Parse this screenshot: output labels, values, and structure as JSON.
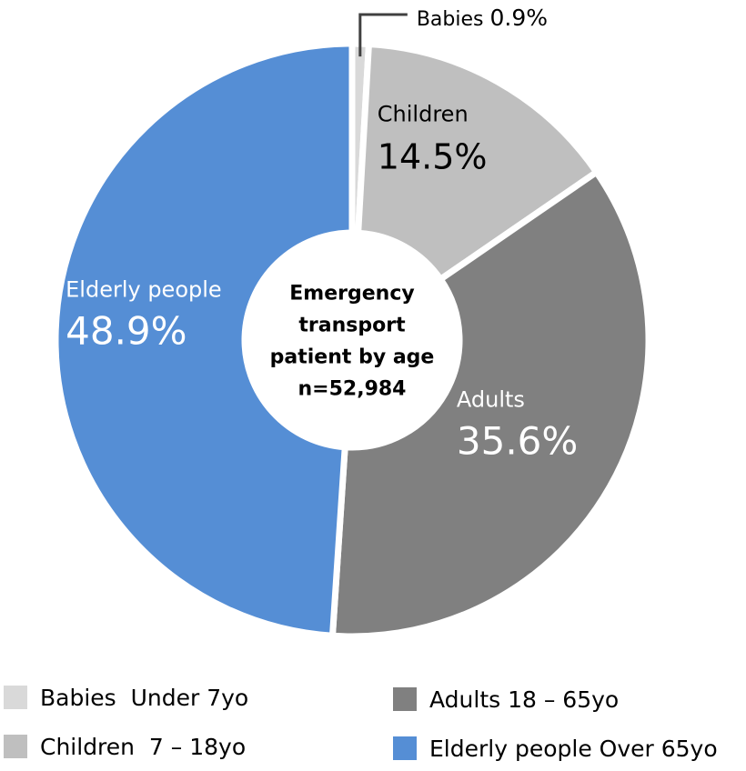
{
  "chart_data": {
    "type": "pie",
    "donut": true,
    "center_text": {
      "lines": [
        "Emergency",
        "transport",
        "patient by age",
        "n=52,984"
      ]
    },
    "slices": [
      {
        "name": "Babies",
        "value": 0.9,
        "value_label": "0.9%",
        "color": "#d9d9d9",
        "label_color": "#000000"
      },
      {
        "name": "Children",
        "value": 14.5,
        "value_label": "14.5%",
        "color": "#bfbfbf",
        "label_color": "#000000"
      },
      {
        "name": "Adults",
        "value": 35.6,
        "value_label": "35.6%",
        "color": "#808080",
        "label_color": "#ffffff"
      },
      {
        "name": "Elderly people",
        "value": 48.9,
        "value_label": "48.9%",
        "color": "#558ed5",
        "label_color": "#ffffff"
      }
    ],
    "legend": [
      {
        "label": "Babies  Under 7yo",
        "color": "#d9d9d9"
      },
      {
        "label": "Children  7 – 18yo",
        "color": "#bfbfbf"
      },
      {
        "label": "Adults 18 – 65yo",
        "color": "#808080"
      },
      {
        "label": "Elderly people Over 65yo",
        "color": "#558ed5"
      }
    ],
    "legend_placement": "bottom"
  }
}
